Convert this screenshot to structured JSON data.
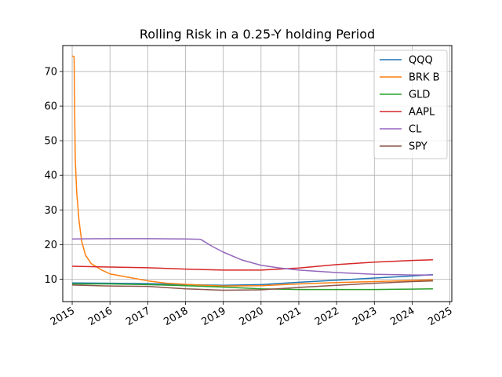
{
  "chart_data": {
    "type": "line",
    "title": "Rolling Risk in a 0.25-Y holding Period",
    "xlabel": "",
    "ylabel": "",
    "xlim": [
      2014.75,
      2025.05
    ],
    "ylim": [
      3.5,
      77.5
    ],
    "x_ticks": [
      {
        "value": 2015,
        "label": "2015"
      },
      {
        "value": 2016,
        "label": "2016"
      },
      {
        "value": 2017,
        "label": "2017"
      },
      {
        "value": 2018,
        "label": "2018"
      },
      {
        "value": 2019,
        "label": "2019"
      },
      {
        "value": 2020,
        "label": "2020"
      },
      {
        "value": 2021,
        "label": "2021"
      },
      {
        "value": 2022,
        "label": "2022"
      },
      {
        "value": 2023,
        "label": "2023"
      },
      {
        "value": 2024,
        "label": "2024"
      },
      {
        "value": 2025,
        "label": "2025"
      }
    ],
    "y_ticks": [
      {
        "value": 10,
        "label": "10"
      },
      {
        "value": 20,
        "label": "20"
      },
      {
        "value": 30,
        "label": "30"
      },
      {
        "value": 40,
        "label": "40"
      },
      {
        "value": 50,
        "label": "50"
      },
      {
        "value": 60,
        "label": "60"
      },
      {
        "value": 70,
        "label": "70"
      }
    ],
    "grid": true,
    "legend_position": "top-right",
    "series": [
      {
        "name": "QQQ",
        "color": "#1f77b4",
        "points": [
          [
            2015.0,
            8.9
          ],
          [
            2016.0,
            8.8
          ],
          [
            2017.0,
            8.7
          ],
          [
            2018.0,
            8.4
          ],
          [
            2019.0,
            8.2
          ],
          [
            2020.0,
            8.4
          ],
          [
            2021.0,
            9.1
          ],
          [
            2022.0,
            9.7
          ],
          [
            2023.0,
            10.3
          ],
          [
            2024.0,
            10.9
          ],
          [
            2024.55,
            11.3
          ]
        ]
      },
      {
        "name": "BRK B",
        "color": "#ff7f0e",
        "points": [
          [
            2015.0,
            74.5
          ],
          [
            2015.05,
            74.3
          ],
          [
            2015.08,
            45
          ],
          [
            2015.12,
            35
          ],
          [
            2015.18,
            27
          ],
          [
            2015.25,
            21
          ],
          [
            2015.35,
            17
          ],
          [
            2015.5,
            14.5
          ],
          [
            2015.75,
            12.8
          ],
          [
            2016.0,
            11.5
          ],
          [
            2016.5,
            10.5
          ],
          [
            2017.0,
            9.5
          ],
          [
            2017.5,
            8.8
          ],
          [
            2018.0,
            8.5
          ],
          [
            2018.5,
            8.2
          ],
          [
            2019.0,
            8.0
          ],
          [
            2020.0,
            8.1
          ],
          [
            2021.0,
            8.6
          ],
          [
            2022.0,
            9.0
          ],
          [
            2023.0,
            9.3
          ],
          [
            2024.0,
            9.6
          ],
          [
            2024.55,
            9.8
          ]
        ]
      },
      {
        "name": "GLD",
        "color": "#2ca02c",
        "points": [
          [
            2015.0,
            8.6
          ],
          [
            2016.0,
            8.6
          ],
          [
            2017.0,
            8.4
          ],
          [
            2018.0,
            8.1
          ],
          [
            2019.0,
            7.7
          ],
          [
            2020.0,
            7.2
          ],
          [
            2021.0,
            7.0
          ],
          [
            2022.0,
            7.0
          ],
          [
            2023.0,
            7.0
          ],
          [
            2024.0,
            7.1
          ],
          [
            2024.55,
            7.2
          ]
        ]
      },
      {
        "name": "AAPL",
        "color": "#d62728",
        "points": [
          [
            2015.0,
            13.7
          ],
          [
            2016.0,
            13.5
          ],
          [
            2017.0,
            13.3
          ],
          [
            2018.0,
            12.9
          ],
          [
            2019.0,
            12.6
          ],
          [
            2020.0,
            12.6
          ],
          [
            2021.0,
            13.2
          ],
          [
            2022.0,
            14.2
          ],
          [
            2023.0,
            14.9
          ],
          [
            2024.0,
            15.4
          ],
          [
            2024.55,
            15.6
          ]
        ]
      },
      {
        "name": "CL",
        "color": "#9467bd",
        "points": [
          [
            2015.0,
            21.6
          ],
          [
            2016.0,
            21.7
          ],
          [
            2017.0,
            21.7
          ],
          [
            2018.0,
            21.6
          ],
          [
            2018.4,
            21.5
          ],
          [
            2018.7,
            19.5
          ],
          [
            2019.0,
            17.8
          ],
          [
            2019.5,
            15.5
          ],
          [
            2020.0,
            14.0
          ],
          [
            2020.5,
            13.2
          ],
          [
            2021.0,
            12.6
          ],
          [
            2022.0,
            11.9
          ],
          [
            2023.0,
            11.4
          ],
          [
            2024.0,
            11.2
          ],
          [
            2024.55,
            11.2
          ]
        ]
      },
      {
        "name": "SPY",
        "color": "#8c564b",
        "points": [
          [
            2015.0,
            8.3
          ],
          [
            2016.0,
            8.0
          ],
          [
            2017.0,
            7.9
          ],
          [
            2018.0,
            7.2
          ],
          [
            2019.0,
            6.8
          ],
          [
            2020.0,
            6.9
          ],
          [
            2021.0,
            7.6
          ],
          [
            2022.0,
            8.2
          ],
          [
            2023.0,
            8.8
          ],
          [
            2024.0,
            9.3
          ],
          [
            2024.55,
            9.5
          ]
        ]
      }
    ]
  }
}
